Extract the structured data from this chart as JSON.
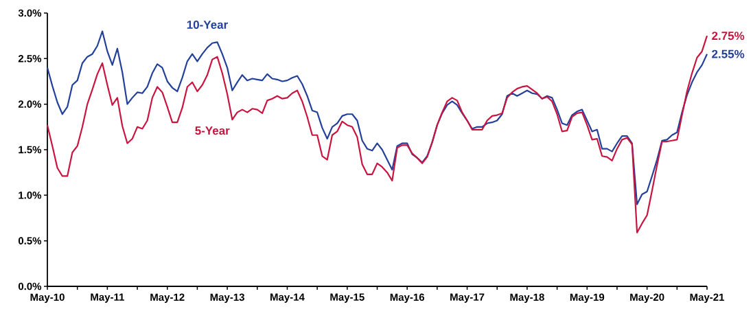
{
  "chart_data": {
    "type": "line",
    "x": [
      "2010-05",
      "2010-06",
      "2010-07",
      "2010-08",
      "2010-09",
      "2010-10",
      "2010-11",
      "2010-12",
      "2011-01",
      "2011-02",
      "2011-03",
      "2011-04",
      "2011-05",
      "2011-06",
      "2011-07",
      "2011-08",
      "2011-09",
      "2011-10",
      "2011-11",
      "2011-12",
      "2012-01",
      "2012-02",
      "2012-03",
      "2012-04",
      "2012-05",
      "2012-06",
      "2012-07",
      "2012-08",
      "2012-09",
      "2012-10",
      "2012-11",
      "2012-12",
      "2013-01",
      "2013-02",
      "2013-03",
      "2013-04",
      "2013-05",
      "2013-06",
      "2013-07",
      "2013-08",
      "2013-09",
      "2013-10",
      "2013-11",
      "2013-12",
      "2014-01",
      "2014-02",
      "2014-03",
      "2014-04",
      "2014-05",
      "2014-06",
      "2014-07",
      "2014-08",
      "2014-09",
      "2014-10",
      "2014-11",
      "2014-12",
      "2015-01",
      "2015-02",
      "2015-03",
      "2015-04",
      "2015-05",
      "2015-06",
      "2015-07",
      "2015-08",
      "2015-09",
      "2015-10",
      "2015-11",
      "2015-12",
      "2016-01",
      "2016-02",
      "2016-03",
      "2016-04",
      "2016-05",
      "2016-06",
      "2016-07",
      "2016-08",
      "2016-09",
      "2016-10",
      "2016-11",
      "2016-12",
      "2017-01",
      "2017-02",
      "2017-03",
      "2017-04",
      "2017-05",
      "2017-06",
      "2017-07",
      "2017-08",
      "2017-09",
      "2017-10",
      "2017-11",
      "2017-12",
      "2018-01",
      "2018-02",
      "2018-03",
      "2018-04",
      "2018-05",
      "2018-06",
      "2018-07",
      "2018-08",
      "2018-09",
      "2018-10",
      "2018-11",
      "2018-12",
      "2019-01",
      "2019-02",
      "2019-03",
      "2019-04",
      "2019-05",
      "2019-06",
      "2019-07",
      "2019-08",
      "2019-09",
      "2019-10",
      "2019-11",
      "2019-12",
      "2020-01",
      "2020-02",
      "2020-03",
      "2020-04",
      "2020-05",
      "2020-06",
      "2020-07",
      "2020-08",
      "2020-09",
      "2020-10",
      "2020-11",
      "2020-12",
      "2021-01",
      "2021-02",
      "2021-03",
      "2021-04",
      "2021-05"
    ],
    "series": [
      {
        "name": "10-Year",
        "color": "#22409a",
        "values": [
          2.4,
          2.2,
          2.02,
          1.89,
          1.97,
          2.21,
          2.26,
          2.45,
          2.52,
          2.55,
          2.64,
          2.8,
          2.58,
          2.43,
          2.61,
          2.35,
          2.0,
          2.07,
          2.13,
          2.12,
          2.19,
          2.34,
          2.44,
          2.4,
          2.25,
          2.18,
          2.14,
          2.29,
          2.47,
          2.55,
          2.47,
          2.55,
          2.62,
          2.67,
          2.68,
          2.55,
          2.4,
          2.15,
          2.24,
          2.32,
          2.26,
          2.28,
          2.27,
          2.26,
          2.33,
          2.28,
          2.27,
          2.25,
          2.26,
          2.29,
          2.31,
          2.22,
          2.09,
          1.93,
          1.91,
          1.74,
          1.62,
          1.75,
          1.79,
          1.87,
          1.89,
          1.89,
          1.82,
          1.6,
          1.51,
          1.49,
          1.57,
          1.5,
          1.39,
          1.28,
          1.54,
          1.57,
          1.57,
          1.45,
          1.41,
          1.36,
          1.43,
          1.58,
          1.77,
          1.9,
          1.99,
          2.03,
          1.99,
          1.9,
          1.82,
          1.73,
          1.75,
          1.75,
          1.79,
          1.8,
          1.82,
          1.89,
          2.09,
          2.12,
          2.09,
          2.12,
          2.15,
          2.12,
          2.11,
          2.06,
          2.09,
          2.07,
          1.94,
          1.79,
          1.77,
          1.88,
          1.92,
          1.94,
          1.82,
          1.7,
          1.72,
          1.51,
          1.51,
          1.48,
          1.57,
          1.65,
          1.65,
          1.57,
          0.9,
          1.01,
          1.04,
          1.21,
          1.39,
          1.6,
          1.61,
          1.66,
          1.69,
          1.91,
          2.1,
          2.24,
          2.35,
          2.43,
          2.55
        ]
      },
      {
        "name": "5-Year",
        "color": "#c8143f",
        "values": [
          1.77,
          1.54,
          1.3,
          1.21,
          1.21,
          1.47,
          1.54,
          1.75,
          2.0,
          2.16,
          2.33,
          2.45,
          2.21,
          1.99,
          2.07,
          1.76,
          1.57,
          1.62,
          1.75,
          1.73,
          1.82,
          2.07,
          2.19,
          2.13,
          1.97,
          1.8,
          1.8,
          1.96,
          2.19,
          2.24,
          2.14,
          2.21,
          2.32,
          2.49,
          2.52,
          2.34,
          2.11,
          1.83,
          1.91,
          1.94,
          1.91,
          1.95,
          1.94,
          1.9,
          2.04,
          2.06,
          2.09,
          2.06,
          2.07,
          2.12,
          2.15,
          2.03,
          1.86,
          1.66,
          1.66,
          1.43,
          1.39,
          1.66,
          1.7,
          1.81,
          1.77,
          1.75,
          1.64,
          1.34,
          1.23,
          1.23,
          1.35,
          1.31,
          1.25,
          1.16,
          1.52,
          1.55,
          1.55,
          1.46,
          1.41,
          1.35,
          1.42,
          1.58,
          1.77,
          1.91,
          2.03,
          2.07,
          2.04,
          1.91,
          1.82,
          1.72,
          1.72,
          1.72,
          1.82,
          1.87,
          1.88,
          1.9,
          2.07,
          2.13,
          2.17,
          2.19,
          2.2,
          2.16,
          2.12,
          2.06,
          2.08,
          2.03,
          1.89,
          1.7,
          1.71,
          1.86,
          1.9,
          1.91,
          1.77,
          1.61,
          1.62,
          1.43,
          1.42,
          1.38,
          1.51,
          1.61,
          1.63,
          1.56,
          0.59,
          0.69,
          0.78,
          1.05,
          1.33,
          1.59,
          1.59,
          1.6,
          1.61,
          1.88,
          2.14,
          2.34,
          2.51,
          2.58,
          2.75
        ]
      }
    ],
    "annotations": [
      {
        "text": "2.75%",
        "x": "2021-05",
        "y": 2.75
      },
      {
        "text": "2.55%",
        "x": "2021-05",
        "y": 2.55
      }
    ],
    "xlim": [
      "2010-05",
      "2021-05"
    ],
    "xticks": [
      {
        "value": "2010-05",
        "label": "May-10"
      },
      {
        "value": "2010-11",
        "label": null
      },
      {
        "value": "2011-05",
        "label": "May-11"
      },
      {
        "value": "2011-11",
        "label": null
      },
      {
        "value": "2012-05",
        "label": "May-12"
      },
      {
        "value": "2012-11",
        "label": null
      },
      {
        "value": "2013-05",
        "label": "May-13"
      },
      {
        "value": "2013-11",
        "label": null
      },
      {
        "value": "2014-05",
        "label": "May-14"
      },
      {
        "value": "2014-11",
        "label": null
      },
      {
        "value": "2015-05",
        "label": "May-15"
      },
      {
        "value": "2015-11",
        "label": null
      },
      {
        "value": "2016-05",
        "label": "May-16"
      },
      {
        "value": "2016-11",
        "label": null
      },
      {
        "value": "2017-05",
        "label": "May-17"
      },
      {
        "value": "2017-11",
        "label": null
      },
      {
        "value": "2018-05",
        "label": "May-18"
      },
      {
        "value": "2018-11",
        "label": null
      },
      {
        "value": "2019-05",
        "label": "May-19"
      },
      {
        "value": "2019-11",
        "label": null
      },
      {
        "value": "2020-05",
        "label": "May-20"
      },
      {
        "value": "2020-11",
        "label": null
      },
      {
        "value": "2021-05",
        "label": "May-21"
      }
    ],
    "ylim": [
      0,
      3
    ],
    "yticks": [
      {
        "value": 0,
        "label": "0.0%"
      },
      {
        "value": 0.5,
        "label": "0.5%"
      },
      {
        "value": 1,
        "label": "1.0%"
      },
      {
        "value": 1.5,
        "label": "1.5%"
      },
      {
        "value": 2,
        "label": "2.0%"
      },
      {
        "value": 2.5,
        "label": "2.5%"
      },
      {
        "value": 3,
        "label": "3.0%"
      }
    ],
    "grid": false,
    "marker": "none",
    "line_style": "solid"
  }
}
